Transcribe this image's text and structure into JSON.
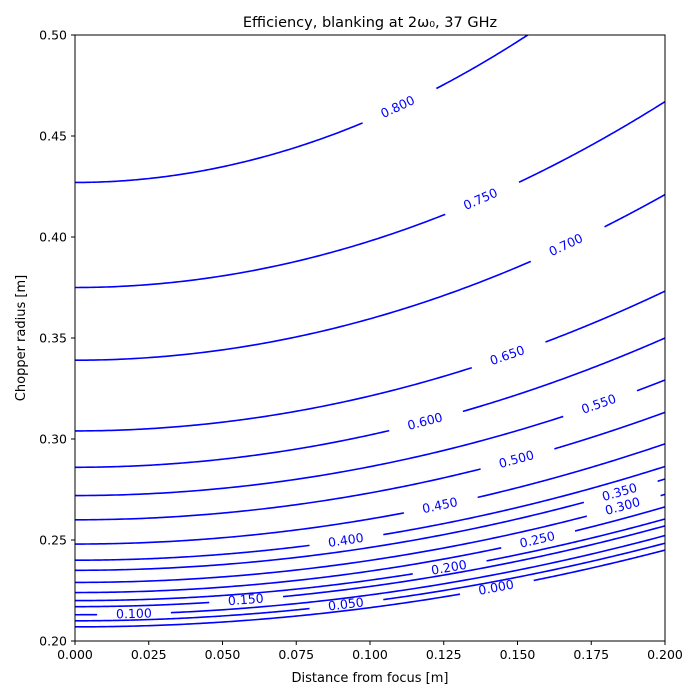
{
  "chart_data": {
    "type": "contour",
    "title": "Efficiency, blanking at 2ω₀, 37 GHz",
    "xlabel": "Distance from focus [m]",
    "ylabel": "Chopper radius [m]",
    "xlim": [
      0.0,
      0.2
    ],
    "ylim": [
      0.2,
      0.5
    ],
    "xticks": [
      "0.000",
      "0.025",
      "0.050",
      "0.075",
      "0.100",
      "0.125",
      "0.150",
      "0.175",
      "0.200"
    ],
    "yticks": [
      "0.20",
      "0.25",
      "0.30",
      "0.35",
      "0.40",
      "0.45",
      "0.50"
    ],
    "grid": false,
    "line_color": "#0000ff",
    "levels": [
      {
        "label": "0.800",
        "y0": 0.427,
        "k": 3.1,
        "label_at": 0.11
      },
      {
        "label": "0.750",
        "y0": 0.375,
        "k": 2.3,
        "label_at": 0.138
      },
      {
        "label": "0.700",
        "y0": 0.339,
        "k": 2.05,
        "label_at": 0.167
      },
      {
        "label": "0.650",
        "y0": 0.304,
        "k": 1.73,
        "label_at": 0.147
      },
      {
        "label": "0.600",
        "y0": 0.286,
        "k": 1.6,
        "label_at": 0.119
      },
      {
        "label": "0.550",
        "y0": 0.272,
        "k": 1.43,
        "label_at": 0.178
      },
      {
        "label": "0.500",
        "y0": 0.26,
        "k": 1.33,
        "label_at": 0.15
      },
      {
        "label": "0.450",
        "y0": 0.248,
        "k": 1.24,
        "label_at": 0.124
      },
      {
        "label": "0.400",
        "y0": 0.24,
        "k": 1.16,
        "label_at": 0.092
      },
      {
        "label": "0.350",
        "y0": 0.235,
        "k": 1.13,
        "label_at": 0.185
      },
      {
        "label": "0.300",
        "y0": 0.229,
        "k": 1.09,
        "label_at": 0.186
      },
      {
        "label": "0.250",
        "y0": 0.224,
        "k": 1.06,
        "label_at": 0.157
      },
      {
        "label": "0.200",
        "y0": 0.22,
        "k": 1.01,
        "label_at": 0.127
      },
      {
        "label": "0.150",
        "y0": 0.217,
        "k": 1.0,
        "label_at": 0.058
      },
      {
        "label": "0.100",
        "y0": 0.213,
        "k": 0.98,
        "label_at": 0.02
      },
      {
        "label": "0.050",
        "y0": 0.21,
        "k": 0.96,
        "label_at": 0.092
      },
      {
        "label": "0.000",
        "y0": 0.207,
        "k": 0.95,
        "label_at": 0.143
      }
    ]
  }
}
